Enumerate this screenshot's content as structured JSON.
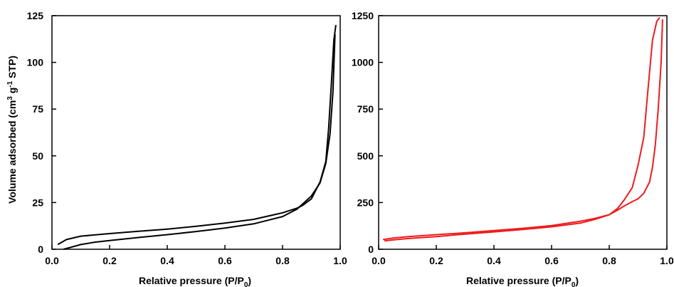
{
  "chart_data": [
    {
      "type": "line",
      "color": "#000000",
      "xlabel": "Relative pressure (P/P",
      "xlabel_sub": "0",
      "xlabel_end": ")",
      "ylabel": "Volume adsorbed (cm",
      "ylabel_sup1": "3",
      "ylabel_mid": " g",
      "ylabel_sup2": "-1",
      "ylabel_end": " STP)",
      "xlim": [
        0.0,
        1.0
      ],
      "ylim": [
        0,
        125
      ],
      "xticks": [
        0.0,
        0.2,
        0.4,
        0.6,
        0.8,
        1.0
      ],
      "xtick_labels": [
        "0.0",
        "0.2",
        "0.4",
        "0.6",
        "0.8",
        "1.0"
      ],
      "yticks": [
        0,
        25,
        50,
        75,
        100,
        125
      ],
      "ytick_labels": [
        "0",
        "25",
        "50",
        "75",
        "100",
        "125"
      ],
      "series": [
        {
          "x": [
            0.04,
            0.06,
            0.1,
            0.15,
            0.2,
            0.3,
            0.4,
            0.5,
            0.6,
            0.7,
            0.8,
            0.85,
            0.9,
            0.93,
            0.95,
            0.965,
            0.975,
            0.982
          ],
          "y": [
            0,
            0.8,
            2.5,
            3.8,
            4.7,
            6.3,
            7.8,
            9.5,
            11.3,
            13.6,
            17.5,
            21.5,
            28.5,
            35.5,
            46,
            62,
            85,
            115
          ]
        },
        {
          "x": [
            0.985,
            0.978,
            0.97,
            0.96,
            0.95,
            0.93,
            0.9,
            0.87,
            0.85,
            0.8,
            0.7,
            0.6,
            0.5,
            0.4,
            0.3,
            0.2,
            0.1,
            0.05,
            0.02
          ],
          "y": [
            120,
            112,
            90,
            65,
            47,
            36,
            27,
            23.5,
            22,
            19.5,
            16,
            14,
            12.3,
            10.8,
            9.6,
            8.4,
            7,
            5.2,
            2.5
          ]
        }
      ]
    },
    {
      "type": "line",
      "color": "#ee1c1c",
      "xlabel": "Relative pressure (P/P",
      "xlabel_sub": "0",
      "xlabel_end": ")",
      "xlim": [
        0.0,
        1.0
      ],
      "ylim": [
        0,
        1250
      ],
      "xticks": [
        0.0,
        0.2,
        0.4,
        0.6,
        0.8,
        1.0
      ],
      "xtick_labels": [
        "0.0",
        "0.2",
        "0.4",
        "0.6",
        "0.8",
        "1.0"
      ],
      "yticks": [
        0,
        250,
        500,
        750,
        1000,
        1250
      ],
      "ytick_labels": [
        "0",
        "250",
        "500",
        "750",
        "1000",
        "1250"
      ],
      "series": [
        {
          "x": [
            0.02,
            0.05,
            0.1,
            0.2,
            0.3,
            0.4,
            0.5,
            0.6,
            0.7,
            0.75,
            0.8,
            0.83,
            0.85,
            0.88,
            0.9,
            0.92,
            0.94,
            0.95,
            0.96,
            0.97,
            0.98,
            0.985
          ],
          "y": [
            45,
            50,
            57,
            68,
            81,
            93,
            106,
            120,
            140,
            160,
            185,
            210,
            230,
            255,
            270,
            300,
            360,
            440,
            560,
            750,
            1000,
            1230
          ]
        },
        {
          "x": [
            0.975,
            0.965,
            0.95,
            0.94,
            0.93,
            0.92,
            0.9,
            0.88,
            0.85,
            0.83,
            0.8,
            0.75,
            0.7,
            0.6,
            0.5,
            0.4,
            0.3,
            0.2,
            0.1,
            0.05,
            0.015
          ],
          "y": [
            1240,
            1220,
            1120,
            950,
            780,
            600,
            450,
            330,
            260,
            220,
            185,
            165,
            150,
            127,
            112,
            100,
            88,
            78,
            67,
            60,
            52
          ]
        }
      ]
    }
  ]
}
